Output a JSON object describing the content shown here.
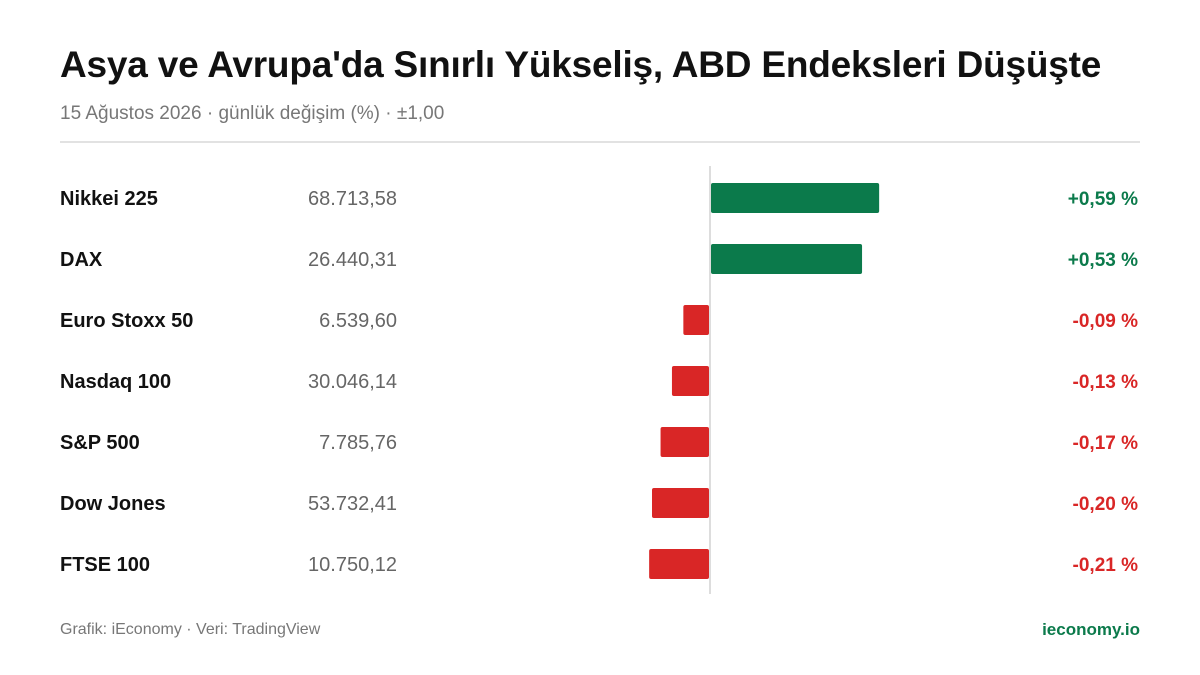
{
  "header": {
    "title": "Asya ve Avrupa'da Sınırlı Yükseliş, ABD Endeksleri Düşüşte",
    "subtitle": "15 Ağustos 2026 · günlük değişim (%) · ±1,00"
  },
  "footer": {
    "credit": "Grafik: iEconomy · Veri: TradingView",
    "site": "ieconomy.io"
  },
  "colors": {
    "positive": "#0b7a4b",
    "negative": "#d92626",
    "name_text": "#111111",
    "level_text": "#666666",
    "zero_line": "#dddddd"
  },
  "chart_data": {
    "type": "bar",
    "orientation": "horizontal",
    "unit": "%",
    "xlim": [
      -1.0,
      1.0
    ],
    "grid": false,
    "categories": [
      "Nikkei 225",
      "DAX",
      "Euro Stoxx 50",
      "Nasdaq 100",
      "S&P 500",
      "Dow Jones",
      "FTSE 100"
    ],
    "index_levels": [
      "68.713,58",
      "26.440,31",
      "6.539,60",
      "30.046,14",
      "7.785,76",
      "53.732,41",
      "10.750,12"
    ],
    "values": [
      0.59,
      0.53,
      -0.09,
      -0.13,
      -0.17,
      -0.2,
      -0.21
    ],
    "value_labels": [
      "+0,59 %",
      "+0,53 %",
      "-0,09 %",
      "-0,13 %",
      "-0,17 %",
      "-0,20 %",
      "-0,21 %"
    ]
  }
}
